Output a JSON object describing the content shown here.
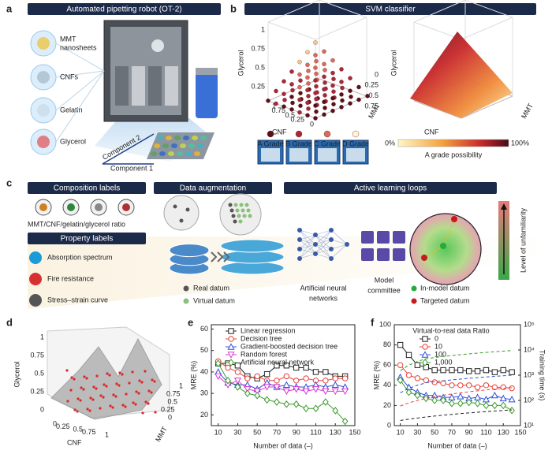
{
  "panel_labels": [
    "a",
    "b",
    "c",
    "d",
    "e",
    "f"
  ],
  "panel_a": {
    "title": "Automated pipetting robot (OT-2)",
    "components": [
      [
        "MMT",
        "nanosheets"
      ],
      [
        "CNFs"
      ],
      [
        "Gelatin"
      ],
      [
        "Glycerol"
      ]
    ],
    "axis_labels": [
      "Component 2",
      "Component 1"
    ]
  },
  "panel_b": {
    "title": "SVM classifier",
    "axis_labels": {
      "z": "Glycerol",
      "x": "CNF",
      "y": "MMT"
    },
    "z_ticks": [
      "1",
      "0.75",
      "0.5",
      "0.25"
    ],
    "x_ticks": [
      "1",
      "0.75",
      "0.5",
      "0.25",
      "0"
    ],
    "y_ticks": [
      "0",
      "0.25",
      "0.5",
      "0.75"
    ],
    "grades": [
      "A Grade",
      "B Grade",
      "C Grade",
      "D Grade"
    ],
    "colorbar": {
      "min_label": "0%",
      "max_label": "100%",
      "label": "A grade possibility"
    }
  },
  "panel_c": {
    "composition": {
      "title": "Composition labels",
      "caption": "MMT/CNF/gelatin/glycerol ratio"
    },
    "property": {
      "title": "Property labels",
      "items": [
        "Absorption spectrum",
        "Fire resistance",
        "Stress–strain curve"
      ]
    },
    "augmentation": {
      "title": "Data augmentation",
      "legend": [
        "Real datum",
        "Virtual datum"
      ]
    },
    "active_learning": {
      "title": "Active learning loops",
      "models": [
        [
          "Artificial neural",
          "networks"
        ],
        [
          "Model",
          "committee"
        ]
      ],
      "legend": [
        "In-model datum",
        "Targeted datum"
      ],
      "scale_label": "Level of unfamiliarity"
    }
  },
  "panel_d": {
    "axis_labels": {
      "z": "Glycerol",
      "x": "CNF",
      "y": "MMT"
    },
    "z_ticks": [
      "0",
      "0.25",
      "0.5",
      "0.75",
      "1"
    ],
    "x_ticks": [
      "0",
      "0.25",
      "0.5",
      "0.75",
      "1"
    ],
    "y_ticks": [
      "0",
      "0.25",
      "0.5",
      "0.75",
      "1"
    ]
  },
  "chart_data": [
    {
      "type": "line",
      "x_label": "Number of data (–)",
      "y_label": "MRE (%)",
      "x": [
        10,
        20,
        30,
        40,
        50,
        60,
        70,
        80,
        90,
        100,
        110,
        120,
        130,
        140
      ],
      "xlim": [
        3,
        150
      ],
      "xticks": [
        10,
        30,
        50,
        70,
        90,
        110,
        130,
        150
      ],
      "ylim": [
        15,
        62
      ],
      "yticks": [
        20,
        30,
        40,
        50,
        60
      ],
      "series": [
        {
          "name": "Linear regression",
          "color": "#222222",
          "marker": "square",
          "values": [
            44,
            44,
            43,
            38,
            37,
            39,
            43,
            43,
            42,
            42,
            40,
            40,
            38,
            38
          ]
        },
        {
          "name": "Decision tree",
          "color": "#e8403a",
          "marker": "circle",
          "values": [
            45,
            42,
            40,
            37,
            38,
            36,
            36,
            38,
            36,
            37,
            36,
            36,
            37,
            37
          ]
        },
        {
          "name": "Gradient-boosted decision tree",
          "color": "#2f4fd8",
          "marker": "triangle-up",
          "values": [
            40,
            35,
            34,
            34,
            32,
            35,
            33,
            34,
            33,
            33,
            34,
            33,
            34,
            33
          ]
        },
        {
          "name": "Random forest",
          "color": "#d63ad6",
          "marker": "triangle-down",
          "values": [
            38,
            34,
            36,
            32,
            31,
            33,
            33,
            31,
            32,
            31,
            32,
            31,
            31,
            31
          ]
        },
        {
          "name": "Artificial neural network",
          "color": "#3a9a2a",
          "marker": "diamond",
          "values": [
            44,
            36,
            33,
            30,
            29,
            27,
            26,
            25,
            25,
            23,
            23,
            26,
            22,
            17
          ]
        }
      ]
    },
    {
      "type": "line",
      "x_label": "Number of data (–)",
      "y_label": "MRE (%)",
      "y2_label": "Training time (s)",
      "legend_title": "Virtual-to-real data Ratio",
      "x": [
        10,
        20,
        30,
        40,
        50,
        60,
        70,
        80,
        90,
        100,
        110,
        120,
        130,
        140
      ],
      "xlim": [
        3,
        150
      ],
      "xticks": [
        10,
        30,
        50,
        70,
        90,
        110,
        130,
        150
      ],
      "ylim": [
        0,
        100
      ],
      "yticks": [
        0,
        20,
        40,
        60,
        80,
        100
      ],
      "y2lim": [
        10,
        100000
      ],
      "y2_log": true,
      "y2ticks": [
        {
          "value": 10,
          "label": "10¹"
        },
        {
          "value": 100,
          "label": "10²"
        },
        {
          "value": 1000,
          "label": "10³"
        },
        {
          "value": 10000,
          "label": "10⁴"
        },
        {
          "value": 100000,
          "label": "10⁵"
        }
      ],
      "series": [
        {
          "name": "0",
          "color": "#222222",
          "marker": "square",
          "values": [
            80,
            70,
            60,
            58,
            55,
            55,
            55,
            55,
            54,
            54,
            55,
            53,
            55,
            53
          ]
        },
        {
          "name": "10",
          "color": "#e8403a",
          "marker": "circle",
          "values": [
            60,
            50,
            47,
            45,
            43,
            42,
            40,
            40,
            40,
            38,
            40,
            38,
            38,
            37
          ]
        },
        {
          "name": "100",
          "color": "#2f4fd8",
          "marker": "triangle-up",
          "values": [
            48,
            38,
            33,
            30,
            30,
            28,
            28,
            29,
            27,
            28,
            26,
            30,
            27,
            26
          ]
        },
        {
          "name": "1,000",
          "color": "#3a9a2a",
          "marker": "diamond",
          "values": [
            45,
            33,
            30,
            27,
            25,
            25,
            22,
            22,
            23,
            22,
            20,
            20,
            20,
            15
          ]
        },
        {
          "color": "#222222",
          "axis": "y2",
          "dash": true,
          "values": [
            16,
            18,
            20,
            22,
            24,
            26,
            28,
            30,
            32,
            34,
            36,
            38,
            40,
            42
          ]
        },
        {
          "color": "#e8403a",
          "axis": "y2",
          "dash": true,
          "values": [
            60,
            80,
            100,
            120,
            140,
            160,
            180,
            200,
            220,
            240,
            260,
            280,
            300,
            320
          ]
        },
        {
          "color": "#2f4fd8",
          "axis": "y2",
          "dash": true,
          "values": [
            200,
            300,
            400,
            500,
            550,
            600,
            650,
            700,
            750,
            800,
            850,
            900,
            950,
            1000
          ]
        },
        {
          "color": "#3a9a2a",
          "axis": "y2",
          "dash": true,
          "values": [
            1500,
            2500,
            3500,
            4500,
            5000,
            5500,
            6000,
            6500,
            7000,
            7500,
            8000,
            8500,
            9000,
            9500
          ]
        }
      ]
    }
  ]
}
